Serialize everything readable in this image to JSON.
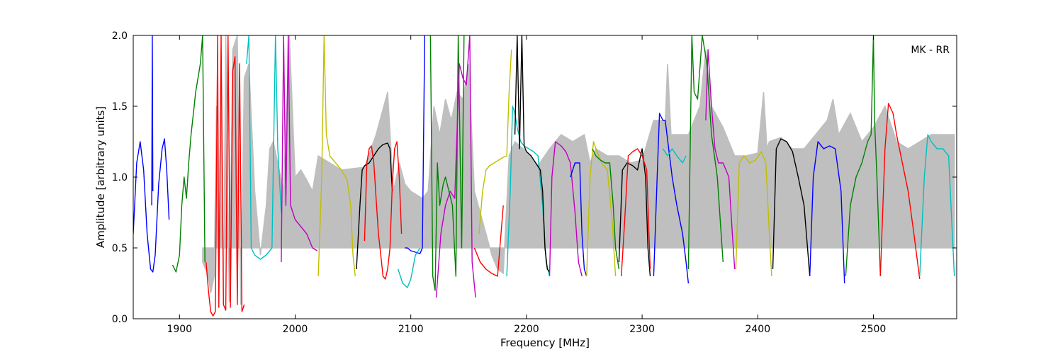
{
  "chart_data": {
    "type": "line",
    "title": "",
    "xlabel": "Frequency [MHz]",
    "ylabel": "Amplitude [arbitrary units]",
    "annotation": "MK - RR",
    "xlim": [
      1860,
      2572
    ],
    "ylim": [
      0.0,
      2.0
    ],
    "x_ticks": [
      1900,
      2000,
      2100,
      2200,
      2300,
      2400,
      2500
    ],
    "x_tick_labels": [
      "1900",
      "2000",
      "2100",
      "2200",
      "2300",
      "2400",
      "2500"
    ],
    "y_ticks": [
      0.0,
      0.5,
      1.0,
      1.5,
      2.0
    ],
    "y_tick_labels": [
      "0.0",
      "0.5",
      "1.0",
      "1.5",
      "2.0"
    ],
    "grid": false,
    "colors": {
      "background_trace": "#bfbfbf",
      "blue": "#0000ff",
      "green": "#008000",
      "red": "#ff0000",
      "cyan": "#00bfbf",
      "magenta": "#bf00bf",
      "yellow": "#bfbf00",
      "black": "#000000"
    },
    "series": [
      {
        "color": "#bfbfbf",
        "role": "background",
        "x": [
          1920,
          1925,
          1927,
          1930,
          1932,
          1934,
          1936,
          1938,
          1940,
          1943,
          1946,
          1950,
          1953,
          1956,
          1960,
          1965,
          1970,
          1975,
          1978,
          1981,
          1985,
          1990,
          1995,
          2000,
          2005,
          2010,
          2015,
          2020,
          2040,
          2060,
          2070,
          2080,
          2085,
          2090,
          2095,
          2100,
          2110,
          2115,
          2120,
          2125,
          2130,
          2135,
          2140,
          2145,
          2150,
          2155,
          2160,
          2165,
          2170,
          2175,
          2180,
          2185,
          2190,
          2200,
          2210,
          2220,
          2230,
          2240,
          2250,
          2255,
          2260,
          2270,
          2280,
          2290,
          2300,
          2310,
          2320,
          2322,
          2325,
          2330,
          2340,
          2350,
          2355,
          2360,
          2370,
          2380,
          2390,
          2400,
          2405,
          2408,
          2410,
          2420,
          2430,
          2440,
          2450,
          2460,
          2465,
          2470,
          2480,
          2490,
          2500,
          2510,
          2520,
          2530,
          2540,
          2550,
          2560,
          2570
        ],
        "y": [
          0.4,
          0.3,
          0.18,
          0.3,
          1.5,
          0.2,
          1.8,
          0.15,
          2.0,
          0.12,
          1.9,
          2.0,
          0.1,
          1.7,
          1.8,
          0.9,
          0.45,
          0.8,
          1.2,
          1.25,
          1.1,
          0.9,
          2.0,
          1.0,
          1.05,
          0.98,
          0.9,
          1.15,
          1.05,
          1.07,
          1.3,
          1.6,
          0.9,
          1.1,
          0.95,
          0.9,
          0.85,
          0.9,
          1.5,
          1.3,
          1.55,
          1.4,
          1.6,
          1.55,
          1.8,
          0.9,
          0.75,
          0.6,
          0.45,
          0.35,
          0.32,
          1.15,
          1.25,
          1.18,
          1.08,
          1.2,
          1.3,
          1.25,
          1.3,
          1.1,
          1.2,
          1.15,
          1.15,
          1.1,
          1.12,
          1.4,
          1.4,
          1.8,
          1.3,
          1.3,
          1.3,
          1.5,
          1.9,
          1.5,
          1.35,
          1.15,
          1.15,
          1.17,
          1.6,
          1.2,
          1.25,
          1.28,
          1.2,
          1.2,
          1.3,
          1.4,
          1.55,
          1.3,
          1.45,
          1.25,
          1.35,
          1.5,
          1.25,
          1.2,
          1.25,
          1.3,
          1.3,
          1.3
        ]
      },
      {
        "color": "#0000ff",
        "x": [
          1860,
          1863,
          1866,
          1869,
          1872,
          1875,
          1877,
          1879,
          1882,
          1885,
          1887,
          1889,
          1891
        ],
        "y": [
          0.6,
          1.1,
          1.25,
          1.05,
          0.6,
          0.35,
          0.33,
          0.45,
          0.95,
          1.2,
          1.27,
          1.05,
          0.7
        ]
      },
      {
        "color": "#0000ff",
        "x": [
          1876,
          1876.5,
          1877
        ],
        "y": [
          0.8,
          2.0,
          0.9
        ]
      },
      {
        "color": "#008000",
        "x": [
          1894,
          1897,
          1900,
          1902,
          1904,
          1906,
          1908,
          1910,
          1912,
          1914,
          1916,
          1918,
          1920,
          1922
        ],
        "y": [
          0.38,
          0.33,
          0.45,
          0.8,
          1.0,
          0.85,
          1.1,
          1.3,
          1.45,
          1.6,
          1.7,
          1.8,
          2.0,
          0.4
        ]
      },
      {
        "color": "#ff0000",
        "x": [
          1923,
          1925,
          1927,
          1929,
          1931,
          1933,
          1934,
          1936,
          1938,
          1940,
          1942,
          1944,
          1946,
          1948,
          1950,
          1952,
          1954,
          1956
        ],
        "y": [
          0.4,
          0.2,
          0.05,
          0.02,
          0.05,
          2.0,
          0.08,
          2.0,
          0.1,
          0.06,
          2.0,
          0.08,
          1.75,
          1.85,
          0.1,
          1.8,
          0.05,
          0.1
        ]
      },
      {
        "color": "#00bfbf",
        "x": [
          1958,
          1960,
          1962,
          1965,
          1970,
          1975,
          1980,
          1983,
          1985,
          1988
        ],
        "y": [
          1.8,
          2.0,
          0.5,
          0.45,
          0.42,
          0.45,
          0.5,
          2.0,
          1.2,
          0.75
        ]
      },
      {
        "color": "#bf00bf",
        "x": [
          1988,
          1990,
          1992,
          1994,
          1996,
          2000,
          2005,
          2010,
          2015,
          2019
        ],
        "y": [
          0.4,
          2.0,
          0.8,
          2.0,
          0.8,
          0.7,
          0.65,
          0.6,
          0.5,
          0.48
        ]
      },
      {
        "color": "#bfbf00",
        "x": [
          2020,
          2023,
          2025,
          2027,
          2030,
          2035,
          2040,
          2045,
          2048,
          2050,
          2052
        ],
        "y": [
          0.3,
          1.0,
          2.0,
          1.3,
          1.15,
          1.1,
          1.05,
          0.98,
          0.8,
          0.45,
          0.3
        ]
      },
      {
        "color": "#000000",
        "x": [
          2053,
          2056,
          2058,
          2060,
          2064,
          2068,
          2072,
          2076,
          2080,
          2082,
          2084
        ],
        "y": [
          0.35,
          0.8,
          1.05,
          1.08,
          1.1,
          1.15,
          1.2,
          1.23,
          1.24,
          1.2,
          0.9
        ]
      },
      {
        "color": "#ff0000",
        "x": [
          2060,
          2062,
          2064,
          2066,
          2068,
          2070,
          2072,
          2074,
          2076,
          2078,
          2080,
          2082,
          2084,
          2086,
          2088,
          2090,
          2092
        ],
        "y": [
          0.55,
          1.1,
          1.2,
          1.22,
          1.1,
          0.85,
          0.6,
          0.45,
          0.3,
          0.28,
          0.35,
          0.5,
          0.95,
          1.2,
          1.25,
          1.0,
          0.6
        ]
      },
      {
        "color": "#0000ff",
        "x": [
          2095,
          2097,
          2100,
          2104,
          2108,
          2110,
          2112
        ],
        "y": [
          0.5,
          0.5,
          0.48,
          0.47,
          0.46,
          0.5,
          2.0
        ]
      },
      {
        "color": "#00bfbf",
        "x": [
          2089,
          2093,
          2097,
          2100,
          2104,
          2108
        ],
        "y": [
          0.35,
          0.25,
          0.22,
          0.28,
          0.45,
          0.5
        ]
      },
      {
        "color": "#008000",
        "x": [
          2117,
          2119,
          2121,
          2123,
          2125,
          2128,
          2130,
          2133,
          2136,
          2139,
          2141,
          2144,
          2146
        ],
        "y": [
          2.0,
          0.3,
          0.2,
          1.1,
          0.8,
          0.95,
          1.0,
          0.9,
          0.8,
          0.3,
          2.0,
          0.5,
          2.0
        ]
      },
      {
        "color": "#bf00bf",
        "x": [
          2122,
          2126,
          2130,
          2134,
          2138,
          2142,
          2145,
          2148,
          2151,
          2153,
          2156
        ],
        "y": [
          0.15,
          0.6,
          0.8,
          0.9,
          0.85,
          1.8,
          1.7,
          1.65,
          2.0,
          0.4,
          0.15
        ]
      },
      {
        "color": "#ff0000",
        "x": [
          2155,
          2160,
          2165,
          2170,
          2175,
          2180
        ],
        "y": [
          0.5,
          0.4,
          0.35,
          0.32,
          0.3,
          0.8
        ]
      },
      {
        "color": "#bfbf00",
        "x": [
          2159,
          2162,
          2165,
          2168,
          2172,
          2176,
          2180,
          2183,
          2185,
          2187
        ],
        "y": [
          0.6,
          0.9,
          1.05,
          1.08,
          1.1,
          1.12,
          1.14,
          1.15,
          1.6,
          1.9
        ]
      },
      {
        "color": "#00bfbf",
        "x": [
          2183,
          2186,
          2188,
          2190,
          2192,
          2195,
          2198,
          2202,
          2206,
          2210,
          2214,
          2217,
          2220
        ],
        "y": [
          0.3,
          0.9,
          1.5,
          1.45,
          1.35,
          1.25,
          1.22,
          1.2,
          1.18,
          1.15,
          0.8,
          0.4,
          0.3
        ]
      },
      {
        "color": "#000000",
        "x": [
          2190,
          2192,
          2194,
          2196,
          2198,
          2200,
          2204,
          2208,
          2212,
          2214,
          2216,
          2218,
          2220
        ],
        "y": [
          1.3,
          2.0,
          1.2,
          2.0,
          1.22,
          1.18,
          1.15,
          1.1,
          1.05,
          0.9,
          0.5,
          0.35,
          0.33
        ]
      },
      {
        "color": "#bf00bf",
        "x": [
          2220,
          2222,
          2225,
          2230,
          2234,
          2238,
          2242,
          2245,
          2248
        ],
        "y": [
          0.3,
          1.0,
          1.25,
          1.22,
          1.18,
          1.1,
          0.75,
          0.4,
          0.3
        ]
      },
      {
        "color": "#0000ff",
        "x": [
          2238,
          2242,
          2246,
          2248,
          2250,
          2252
        ],
        "y": [
          1.0,
          1.1,
          1.1,
          0.6,
          0.35,
          0.3
        ]
      },
      {
        "color": "#bfbf00",
        "x": [
          2252,
          2255,
          2258,
          2261,
          2265,
          2270,
          2274,
          2277
        ],
        "y": [
          0.3,
          1.0,
          1.25,
          1.18,
          1.1,
          1.05,
          0.7,
          0.3
        ]
      },
      {
        "color": "#008000",
        "x": [
          2257,
          2260,
          2264,
          2268,
          2272,
          2275,
          2277,
          2280
        ],
        "y": [
          1.2,
          1.15,
          1.12,
          1.1,
          1.1,
          0.8,
          0.5,
          0.35
        ]
      },
      {
        "color": "#000000",
        "x": [
          2280,
          2283,
          2287,
          2292,
          2296,
          2300,
          2303,
          2305,
          2307
        ],
        "y": [
          0.4,
          1.05,
          1.1,
          1.08,
          1.05,
          1.2,
          1.0,
          0.5,
          0.3
        ]
      },
      {
        "color": "#ff0000",
        "x": [
          2282,
          2285,
          2288,
          2292,
          2296,
          2300,
          2304,
          2307
        ],
        "y": [
          0.3,
          0.7,
          1.15,
          1.18,
          1.2,
          1.15,
          1.05,
          0.35
        ]
      },
      {
        "color": "#0000ff",
        "x": [
          2310,
          2313,
          2315,
          2318,
          2320,
          2323,
          2326,
          2330,
          2335,
          2338,
          2340
        ],
        "y": [
          0.3,
          1.0,
          1.45,
          1.4,
          1.4,
          1.2,
          1.0,
          0.8,
          0.6,
          0.4,
          0.25
        ]
      },
      {
        "color": "#00bfbf",
        "x": [
          2318,
          2322,
          2326,
          2330,
          2335,
          2338
        ],
        "y": [
          1.2,
          1.15,
          1.2,
          1.15,
          1.1,
          1.15
        ]
      },
      {
        "color": "#008000",
        "x": [
          2340,
          2343,
          2345,
          2348,
          2352,
          2356,
          2360,
          2365,
          2370
        ],
        "y": [
          0.35,
          2.0,
          1.6,
          1.55,
          2.0,
          1.8,
          1.3,
          1.0,
          0.4
        ]
      },
      {
        "color": "#bf00bf",
        "x": [
          2355,
          2357,
          2360,
          2363,
          2366,
          2370,
          2375,
          2378,
          2380
        ],
        "y": [
          1.4,
          1.9,
          1.5,
          1.2,
          1.1,
          1.1,
          1.0,
          0.6,
          0.35
        ]
      },
      {
        "color": "#bfbf00",
        "x": [
          2381,
          2384,
          2388,
          2393,
          2398,
          2403,
          2407,
          2410,
          2412
        ],
        "y": [
          0.35,
          1.1,
          1.15,
          1.1,
          1.12,
          1.18,
          1.1,
          0.6,
          0.3
        ]
      },
      {
        "color": "#000000",
        "x": [
          2413,
          2416,
          2420,
          2425,
          2430,
          2435,
          2440,
          2443,
          2445
        ],
        "y": [
          0.35,
          1.2,
          1.27,
          1.25,
          1.18,
          1.0,
          0.8,
          0.5,
          0.3
        ]
      },
      {
        "color": "#0000ff",
        "x": [
          2445,
          2448,
          2452,
          2457,
          2462,
          2467,
          2472,
          2475
        ],
        "y": [
          0.3,
          1.0,
          1.25,
          1.2,
          1.22,
          1.2,
          0.9,
          0.25
        ]
      },
      {
        "color": "#008000",
        "x": [
          2476,
          2480,
          2485,
          2490,
          2495,
          2498,
          2500,
          2501,
          2503,
          2506
        ],
        "y": [
          0.3,
          0.8,
          1.0,
          1.1,
          1.25,
          1.3,
          2.0,
          1.4,
          1.0,
          0.3
        ]
      },
      {
        "color": "#ff0000",
        "x": [
          2506,
          2510,
          2513,
          2517,
          2520,
          2525,
          2530,
          2535,
          2540
        ],
        "y": [
          0.3,
          1.2,
          1.52,
          1.45,
          1.3,
          1.1,
          0.9,
          0.6,
          0.28
        ]
      },
      {
        "color": "#00bfbf",
        "x": [
          2540,
          2544,
          2547,
          2550,
          2555,
          2560,
          2565,
          2570
        ],
        "y": [
          0.3,
          1.0,
          1.3,
          1.25,
          1.2,
          1.2,
          1.15,
          0.3
        ]
      }
    ]
  }
}
